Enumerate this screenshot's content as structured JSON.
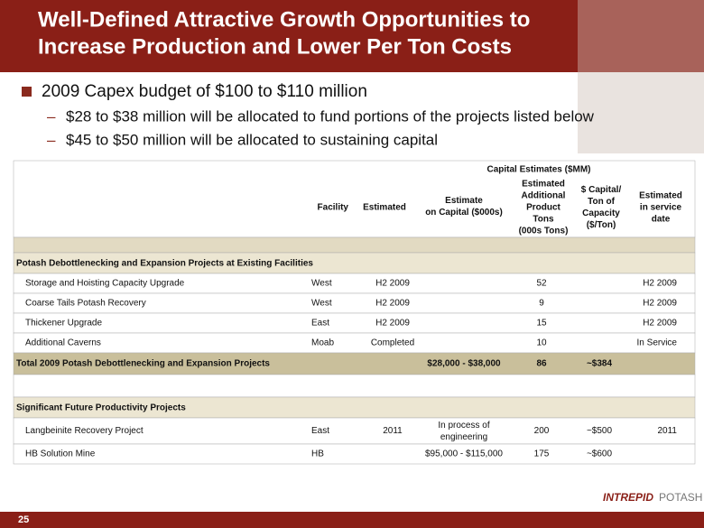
{
  "header": {
    "title": [
      "Well-Defined Attractive Growth Opportunities to",
      "Increase Production and Lower Per Ton Costs"
    ]
  },
  "bullets": {
    "main": "2009 Capex budget of $100 to $110 million",
    "sub": [
      "$28 to $38 million will be allocated to fund portions of the projects listed below",
      "$45 to $50 million will be allocated to sustaining capital"
    ]
  },
  "table": {
    "group_header": "Capital Estimates ($MM)",
    "columns": {
      "facility": [
        "Facility"
      ],
      "estimated": [
        "Estimated"
      ],
      "capital": [
        "Estimate",
        "on Capital ($000s)"
      ],
      "tons": [
        "Estimated",
        "Additional",
        "Product",
        "Tons",
        "(000s Tons)"
      ],
      "per_ton": [
        "$ Capital/",
        "Ton of",
        "Capacity",
        "($/Ton)"
      ],
      "date": [
        "Estimated",
        "in service",
        "date"
      ]
    },
    "sections": [
      {
        "title": "Potash Debottlenecking and Expansion Projects at Existing Facilities",
        "rows": [
          {
            "name": "Storage and Hoisting Capacity Upgrade",
            "facility": "West",
            "estimated": "H2 2009",
            "tons": 52,
            "date": "H2 2009"
          },
          {
            "name": "Coarse Tails Potash Recovery",
            "facility": "West",
            "estimated": "H2 2009",
            "tons": 9,
            "date": "H2 2009"
          },
          {
            "name": "Thickener Upgrade",
            "facility": "East",
            "estimated": "H2 2009",
            "tons": 15,
            "date": "H2 2009"
          },
          {
            "name": "Additional Caverns",
            "facility": "Moab",
            "estimated": "Completed",
            "tons": 10,
            "date": "In Service"
          }
        ],
        "total": {
          "name": "Total 2009 Potash Debottlenecking and Expansion Projects",
          "capital": "$28,000 - $38,000",
          "tons": 86,
          "per_ton": "~$384"
        }
      },
      {
        "title": "Significant Future Productivity Projects",
        "rows": [
          {
            "name": "Langbeinite Recovery Project",
            "facility": "East",
            "estimated": "2011",
            "capital": [
              "In process of",
              "engineering"
            ],
            "tons": 200,
            "per_ton": "~$500",
            "date": "2011"
          },
          {
            "name": "HB Solution Mine",
            "facility": "HB",
            "capital": "$95,000 - $115,000",
            "tons": 175,
            "per_ton": "~$600"
          }
        ]
      }
    ]
  },
  "footer": {
    "page": "25",
    "logo": [
      "INTREPID",
      "POTASH"
    ]
  }
}
